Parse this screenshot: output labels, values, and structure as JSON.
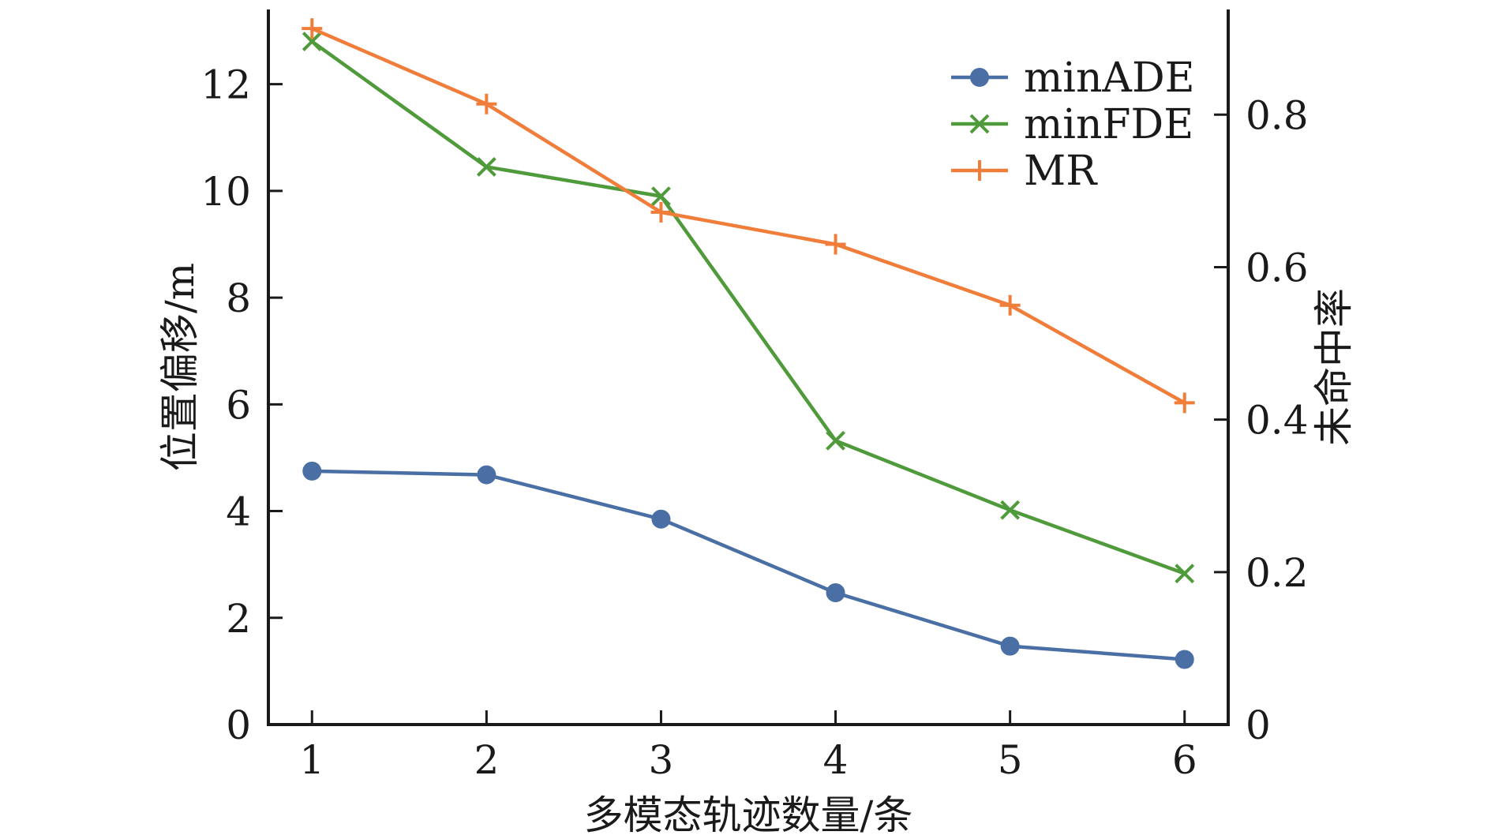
{
  "chart_data": {
    "type": "line",
    "x": [
      1,
      2,
      3,
      4,
      5,
      6
    ],
    "xlabel": "多模态轨迹数量/条",
    "ylabel": "位置偏移/m",
    "y2label": "未命中率",
    "xlim": [
      0.75,
      6.25
    ],
    "ylim": [
      0,
      13.4
    ],
    "y2lim": [
      0,
      0.938
    ],
    "xticks": [
      "1",
      "2",
      "3",
      "4",
      "5",
      "6"
    ],
    "yticks": [
      "0",
      "2",
      "4",
      "6",
      "8",
      "10",
      "12"
    ],
    "y2ticks": [
      "0",
      "0.2",
      "0.4",
      "0.6",
      "0.8"
    ],
    "legend_position": "top-right",
    "grid": false,
    "series": [
      {
        "name": "minADE",
        "axis": "left",
        "color": "#4a6fa5",
        "marker": "circle",
        "values": [
          4.75,
          4.68,
          3.85,
          2.47,
          1.47,
          1.22
        ]
      },
      {
        "name": "minFDE",
        "axis": "left",
        "color": "#4f9a3a",
        "marker": "x",
        "values": [
          12.8,
          10.45,
          9.9,
          5.32,
          4.02,
          2.83
        ]
      },
      {
        "name": "MR",
        "axis": "right",
        "color": "#f07d3a",
        "marker": "plus",
        "values": [
          0.913,
          0.814,
          0.672,
          0.63,
          0.55,
          0.422
        ]
      }
    ]
  }
}
